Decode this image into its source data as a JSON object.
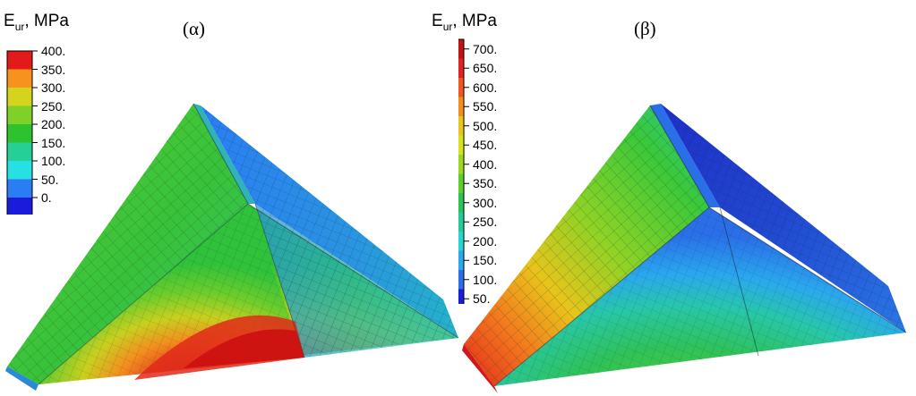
{
  "panels": [
    {
      "label": "(α)",
      "legend_title": "E",
      "legend_sub": "ur",
      "legend_unit": ", MPa",
      "ticks": [
        "400.",
        "350.",
        "300.",
        "250.",
        "200.",
        "150.",
        "100.",
        "50.",
        "0."
      ],
      "colors": [
        "#e41a1a",
        "#f7921e",
        "#d3d41c",
        "#7fd12a",
        "#2fc22f",
        "#25cf96",
        "#27e0e4",
        "#2a7df2",
        "#1b1bdc"
      ]
    },
    {
      "label": "(β)",
      "legend_title": "E",
      "legend_sub": "ur",
      "legend_unit": ", MPa",
      "ticks": [
        "700.",
        "650.",
        "600.",
        "550.",
        "500.",
        "450.",
        "400.",
        "350.",
        "300.",
        "250.",
        "200.",
        "150.",
        "100.",
        "50."
      ],
      "colors": [
        "#bf1414",
        "#e32323",
        "#f2561f",
        "#f58d1e",
        "#e8c41c",
        "#d7e21c",
        "#9fd61f",
        "#5cd02d",
        "#2dc254",
        "#27c99a",
        "#27d4cf",
        "#2aa8ee",
        "#2a6ee8",
        "#1b1bdc"
      ]
    }
  ]
}
